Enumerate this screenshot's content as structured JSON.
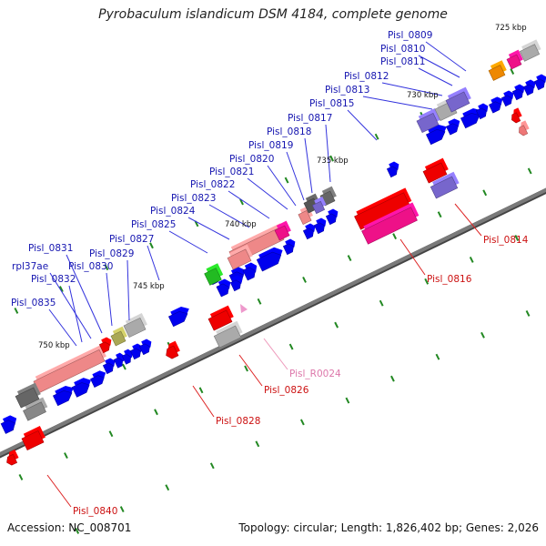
{
  "title": "Pyrobaculum islandicum DSM 4184, complete genome",
  "footer": {
    "accession": "Accession: NC_008701",
    "summary": "Topology: circular; Length: 1,826,402 bp; Genes: 2,026"
  },
  "colors": {
    "backbone": "#7a7a7a",
    "blue": "#0000ee",
    "red": "#ee0000",
    "pink_rrna": "#ee8888",
    "magenta": "#ee1188",
    "purple": "#7766cc",
    "gray": "#888888",
    "green": "#22bb22",
    "olive": "#aaa855",
    "orange": "#ee8800",
    "tick_green": "#228822",
    "label_blue": "#1515b0",
    "label_red": "#cc1111",
    "label_pink": "#dd77aa",
    "leader_blue": "#3333dd",
    "leader_red": "#dd2222",
    "leader_pink": "#ee99bb"
  },
  "scale_labels": [
    "725 kbp",
    "730 kbp",
    "735 kbp",
    "740 kbp",
    "745 kbp",
    "750 kbp"
  ],
  "gene_labels": {
    "forward": [
      "Pisl_0809",
      "Pisl_0810",
      "Pisl_0811",
      "Pisl_0812",
      "Pisl_0813",
      "Pisl_0815",
      "Pisl_0817",
      "Pisl_0818",
      "Pisl_0819",
      "Pisl_0820",
      "Pisl_0821",
      "Pisl_0822",
      "Pisl_0823",
      "Pisl_0824",
      "Pisl_0825",
      "Pisl_0827",
      "Pisl_0829",
      "Pisl_0830",
      "Pisl_0831",
      "rpl37ae",
      "Pisl_0832",
      "Pisl_0835"
    ],
    "reverse": [
      "Pisl_0814",
      "Pisl_0816",
      "Pisl_R0024",
      "Pisl_0826",
      "Pisl_0828",
      "Pisl_0840"
    ]
  }
}
